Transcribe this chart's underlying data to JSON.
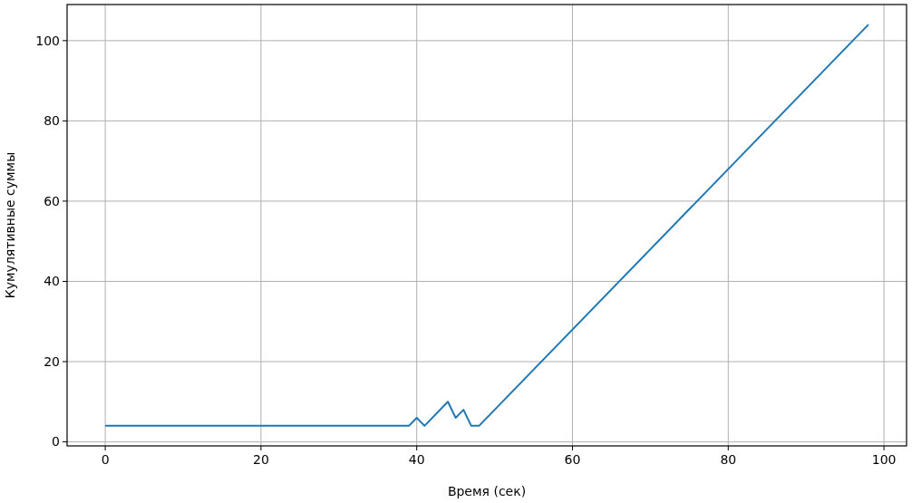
{
  "chart_data": {
    "type": "line",
    "xlabel": "Время (сек)",
    "ylabel": "Кумулятивные суммы",
    "x": [
      0,
      39,
      40,
      41,
      44,
      45,
      46,
      47,
      48,
      98
    ],
    "series": [
      {
        "color": "#1f77b4",
        "values": [
          4,
          4,
          6,
          4,
          10,
          6,
          8,
          4,
          4,
          104
        ]
      }
    ],
    "xlim": [
      -4.9,
      102.9
    ],
    "ylim": [
      -1,
      109
    ],
    "xticks": [
      0,
      20,
      40,
      60,
      80,
      100
    ],
    "yticks": [
      0,
      20,
      40,
      60,
      80,
      100
    ],
    "grid": true
  }
}
